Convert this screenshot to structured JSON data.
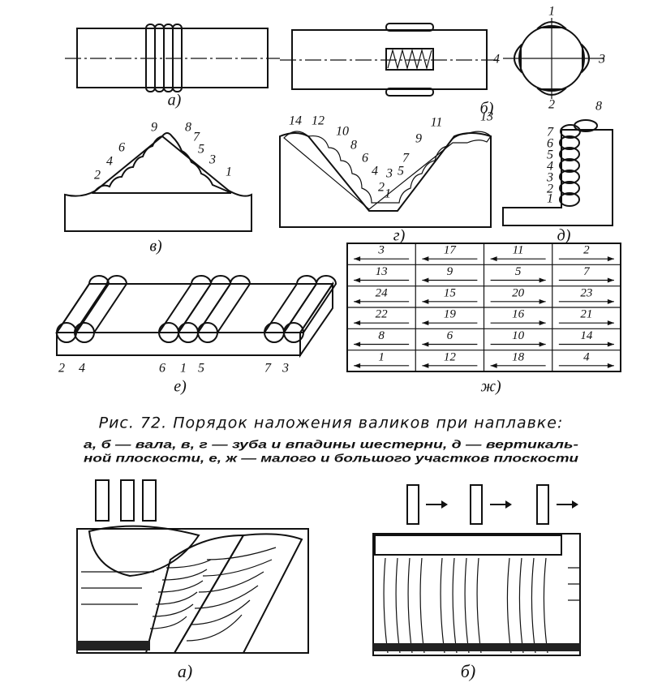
{
  "figure_a": {
    "label": "а)"
  },
  "figure_b": {
    "label": "б)",
    "numbers": [
      1,
      4,
      3,
      2
    ]
  },
  "figure_v": {
    "label": "в)",
    "numbers": [
      9,
      8,
      7,
      6,
      5,
      4,
      3,
      2,
      1
    ]
  },
  "figure_g": {
    "label": "г)",
    "numbers": [
      14,
      12,
      10,
      8,
      6,
      4,
      2,
      1,
      3,
      5,
      7,
      9,
      11,
      13
    ]
  },
  "figure_d": {
    "label": "д)",
    "numbers": [
      8,
      7,
      6,
      5,
      4,
      3,
      2,
      1
    ]
  },
  "figure_e": {
    "label": "е)",
    "numbers": [
      2,
      4,
      6,
      1,
      5,
      7,
      3
    ]
  },
  "figure_zh": {
    "label": "ж)",
    "table": {
      "rows": [
        [
          3,
          17,
          11,
          2
        ],
        [
          13,
          9,
          5,
          7
        ],
        [
          24,
          15,
          20,
          23
        ],
        [
          22,
          19,
          16,
          21
        ],
        [
          8,
          6,
          10,
          14
        ],
        [
          1,
          12,
          18,
          4
        ]
      ]
    }
  },
  "caption": {
    "title": "Рис. 72. Порядок наложения валиков при наплавке:",
    "lines": [
      "а, б — вала, в, г — зуба и впадины шестерни, д — вертикаль-",
      "ной плоскости, е, ж — малого и большого участков плоскости"
    ]
  },
  "bottom_a": {
    "label": "а)"
  },
  "bottom_b": {
    "label": "б)"
  }
}
